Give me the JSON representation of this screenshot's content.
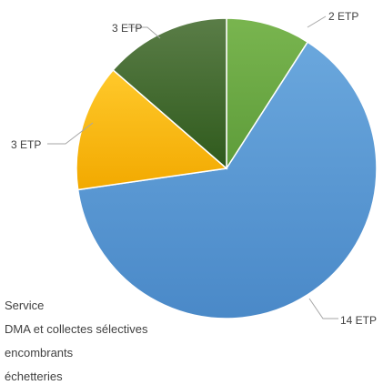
{
  "chart_data": {
    "type": "pie",
    "slices": [
      {
        "label": "2 ETP",
        "value": 2,
        "color": "#70ad47",
        "gradient": [
          "#79b54f",
          "#5e9c3a"
        ]
      },
      {
        "label": "14 ETP",
        "value": 14,
        "color": "#5b9bd5",
        "gradient": [
          "#6aa7dd",
          "#4a89c8"
        ]
      },
      {
        "label": "3 ETP",
        "value": 3,
        "color": "#ffc000",
        "gradient": [
          "#ffc92b",
          "#f2a900"
        ]
      },
      {
        "label": "3 ETP",
        "value": 3,
        "color": "#426e2b",
        "gradient": [
          "#5a7d47",
          "#2f5a1c"
        ]
      }
    ],
    "legend": {
      "placement": "bottom-left",
      "entries": [
        "Service",
        "DMA et collectes sélectives",
        "encombrants",
        "échetteries"
      ]
    }
  }
}
